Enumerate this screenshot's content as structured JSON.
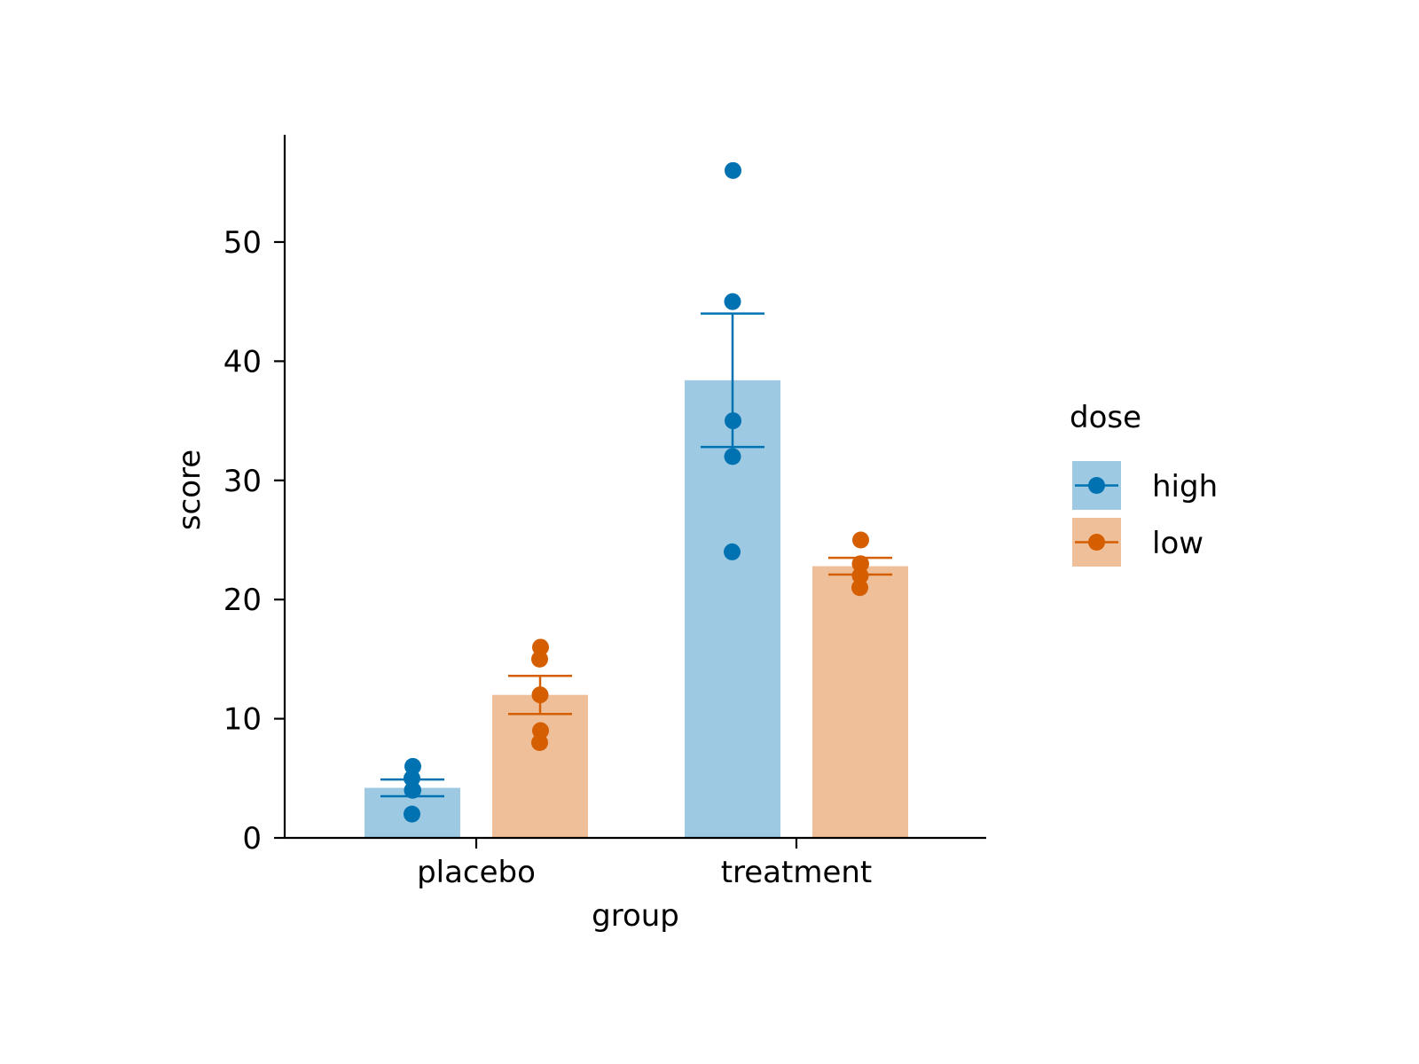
{
  "chart_data": {
    "type": "bar",
    "xlabel": "group",
    "ylabel": "score",
    "categories": [
      "placebo",
      "treatment"
    ],
    "ylim": [
      0,
      59
    ],
    "yticks": [
      0,
      10,
      20,
      30,
      40,
      50
    ],
    "grid": false,
    "legend": {
      "title": "dose",
      "placement": "right"
    },
    "series": [
      {
        "name": "high",
        "color": "#0072B2",
        "bar_color": "#9DC9E2",
        "values": [
          4.2,
          38.4
        ],
        "error": [
          [
            3.5,
            4.9
          ],
          [
            32.8,
            44.0
          ]
        ],
        "points": [
          [
            2,
            4,
            4,
            5,
            6
          ],
          [
            24,
            32,
            35,
            45,
            56
          ]
        ]
      },
      {
        "name": "low",
        "color": "#D55E00",
        "bar_color": "#EFBF99",
        "values": [
          12.0,
          22.8
        ],
        "error": [
          [
            10.4,
            13.6
          ],
          [
            22.1,
            23.5
          ]
        ],
        "points": [
          [
            8,
            9,
            12,
            15,
            16
          ],
          [
            21,
            22,
            23,
            23,
            25
          ]
        ]
      }
    ]
  }
}
